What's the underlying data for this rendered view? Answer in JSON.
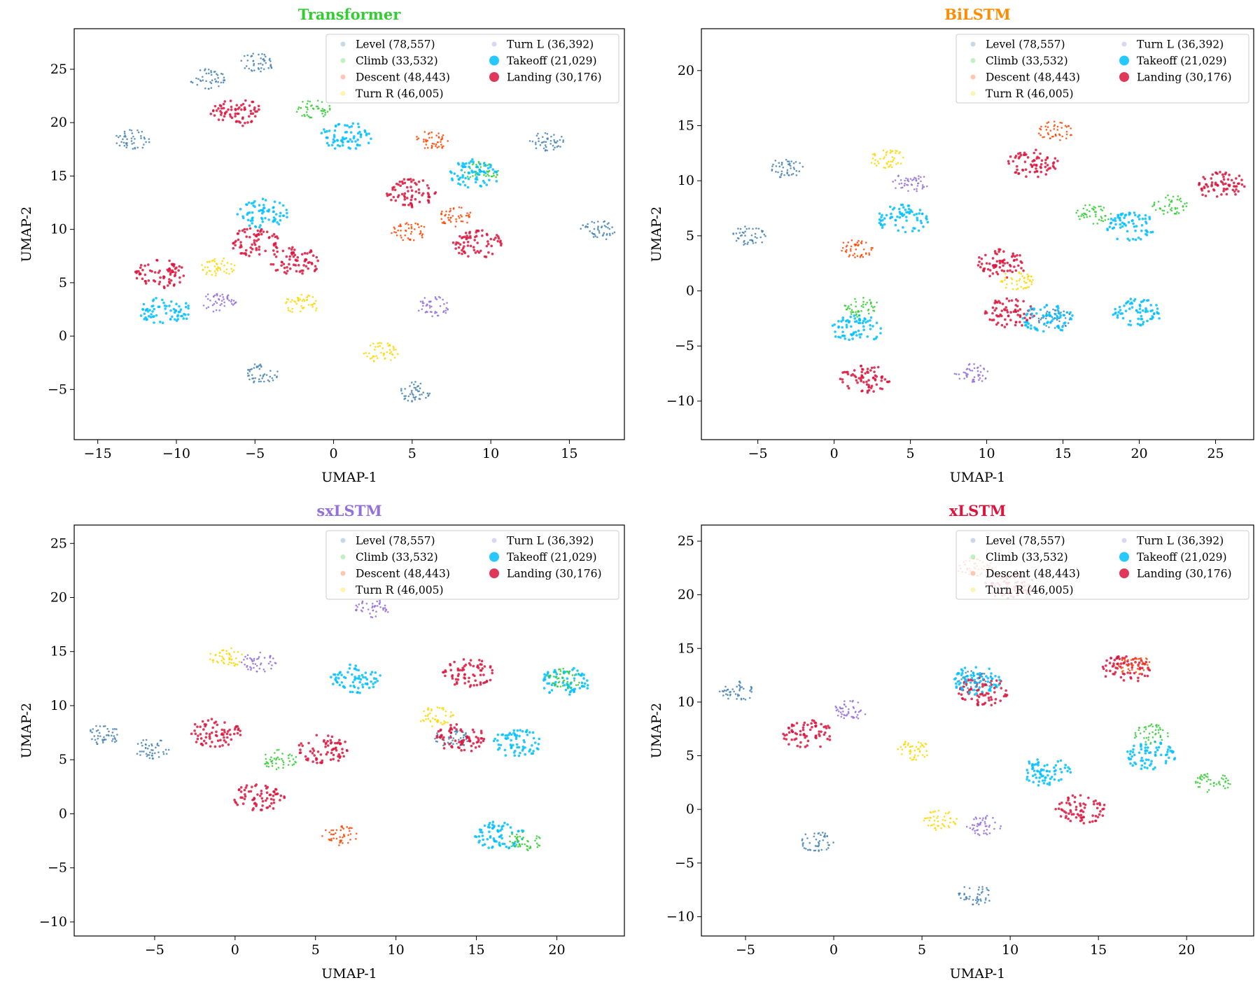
{
  "legend": [
    {
      "label": "Level (78,557)",
      "color": "#4682b4",
      "size": "small"
    },
    {
      "label": "Climb (33,532)",
      "color": "#32cd32",
      "size": "small"
    },
    {
      "label": "Descent (48,443)",
      "color": "#ff4500",
      "size": "small"
    },
    {
      "label": "Turn R (46,005)",
      "color": "#ffd700",
      "size": "small"
    },
    {
      "label": "Turn L (36,392)",
      "color": "#9370db",
      "size": "small"
    },
    {
      "label": "Takeoff (21,029)",
      "color": "#00bfff",
      "size": "large"
    },
    {
      "label": "Landing (30,176)",
      "color": "#dc143c",
      "size": "large"
    }
  ],
  "chart_data": [
    {
      "type": "scatter",
      "title": "Transformer",
      "title_color": "#32cd32",
      "xlabel": "UMAP-1",
      "ylabel": "UMAP-2",
      "xlim": [
        -16.5,
        18.5
      ],
      "ylim": [
        -9.7,
        28.8
      ],
      "xticks": [
        -15,
        -10,
        -5,
        0,
        5,
        10,
        15
      ],
      "yticks": [
        -5,
        0,
        5,
        10,
        15,
        20,
        25
      ],
      "clusters": [
        {
          "class": "Level",
          "x": 5.2,
          "y": -5.2
        },
        {
          "class": "Level",
          "x": -4.6,
          "y": -3.5
        },
        {
          "class": "Level",
          "x": 13.6,
          "y": 18.3
        },
        {
          "class": "Level",
          "x": 16.8,
          "y": 9.9
        },
        {
          "class": "Level",
          "x": -4.9,
          "y": 25.6
        },
        {
          "class": "Level",
          "x": -8.0,
          "y": 24.1
        },
        {
          "class": "Level",
          "x": -12.8,
          "y": 18.4
        },
        {
          "class": "Climb",
          "x": -1.3,
          "y": 21.3
        },
        {
          "class": "Climb",
          "x": 9.4,
          "y": 15.4
        },
        {
          "class": "Takeoff",
          "x": -4.5,
          "y": 11.5
        },
        {
          "class": "Takeoff",
          "x": 0.8,
          "y": 18.7
        },
        {
          "class": "Takeoff",
          "x": -10.7,
          "y": 2.3
        },
        {
          "class": "Takeoff",
          "x": 9.0,
          "y": 15.2
        },
        {
          "class": "Landing",
          "x": -5.0,
          "y": 8.8
        },
        {
          "class": "Landing",
          "x": -2.4,
          "y": 7.0
        },
        {
          "class": "Landing",
          "x": 9.2,
          "y": 8.6
        },
        {
          "class": "Landing",
          "x": 5.0,
          "y": 13.4
        },
        {
          "class": "Landing",
          "x": -6.2,
          "y": 21.0
        },
        {
          "class": "Landing",
          "x": -11.0,
          "y": 5.8
        },
        {
          "class": "Descent",
          "x": 6.2,
          "y": 18.3
        },
        {
          "class": "Descent",
          "x": 4.8,
          "y": 9.8
        },
        {
          "class": "Descent",
          "x": 7.8,
          "y": 11.2
        },
        {
          "class": "Turn L",
          "x": 6.3,
          "y": 2.8
        },
        {
          "class": "Turn L",
          "x": -7.3,
          "y": 3.2
        },
        {
          "class": "Turn R",
          "x": -2.0,
          "y": 3.0
        },
        {
          "class": "Turn R",
          "x": 3.0,
          "y": -1.5
        },
        {
          "class": "Turn R",
          "x": -7.4,
          "y": 6.5
        }
      ]
    },
    {
      "type": "scatter",
      "title": "BiLSTM",
      "title_color": "#ff8c00",
      "xlabel": "UMAP-1",
      "ylabel": "UMAP-2",
      "xlim": [
        -8.7,
        27.5
      ],
      "ylim": [
        -13.5,
        23.8
      ],
      "xticks": [
        -5,
        0,
        5,
        10,
        15,
        20,
        25
      ],
      "yticks": [
        -10,
        -5,
        0,
        5,
        10,
        15,
        20
      ],
      "clusters": [
        {
          "class": "Level",
          "x": -5.5,
          "y": 5.0
        },
        {
          "class": "Level",
          "x": -3.2,
          "y": 11.2
        },
        {
          "class": "Level",
          "x": 14.5,
          "y": -2.5
        },
        {
          "class": "Landing",
          "x": 11.5,
          "y": -2.0
        },
        {
          "class": "Landing",
          "x": 13.0,
          "y": 11.6
        },
        {
          "class": "Landing",
          "x": 11.0,
          "y": 2.5
        },
        {
          "class": "Landing",
          "x": 25.5,
          "y": 9.5
        },
        {
          "class": "Landing",
          "x": 2.0,
          "y": -8.0
        },
        {
          "class": "Takeoff",
          "x": 14.0,
          "y": -2.5
        },
        {
          "class": "Takeoff",
          "x": 19.5,
          "y": 5.8
        },
        {
          "class": "Takeoff",
          "x": 1.5,
          "y": -3.5
        },
        {
          "class": "Takeoff",
          "x": 4.5,
          "y": 6.5
        },
        {
          "class": "Takeoff",
          "x": 19.8,
          "y": -2.0
        },
        {
          "class": "Climb",
          "x": 17.0,
          "y": 7.0
        },
        {
          "class": "Climb",
          "x": 22.0,
          "y": 7.8
        },
        {
          "class": "Climb",
          "x": 1.8,
          "y": -1.5
        },
        {
          "class": "Descent",
          "x": 1.5,
          "y": 3.8
        },
        {
          "class": "Descent",
          "x": 14.5,
          "y": 14.5
        },
        {
          "class": "Turn L",
          "x": 5.0,
          "y": 9.8
        },
        {
          "class": "Turn L",
          "x": 9.0,
          "y": -7.5
        },
        {
          "class": "Turn R",
          "x": 3.5,
          "y": 12.0
        },
        {
          "class": "Turn R",
          "x": 12.0,
          "y": 1.0
        }
      ]
    },
    {
      "type": "scatter",
      "title": "sxLSTM",
      "title_color": "#9370db",
      "xlabel": "UMAP-1",
      "ylabel": "UMAP-2",
      "xlim": [
        -10.0,
        24.2
      ],
      "ylim": [
        -11.3,
        26.7
      ],
      "xticks": [
        -5,
        0,
        5,
        10,
        15,
        20
      ],
      "yticks": [
        -10,
        -5,
        0,
        5,
        10,
        15,
        20,
        25
      ],
      "clusters": [
        {
          "class": "Level",
          "x": -5.2,
          "y": 6.0
        },
        {
          "class": "Level",
          "x": -8.2,
          "y": 7.3
        },
        {
          "class": "Level",
          "x": 13.5,
          "y": 7.0
        },
        {
          "class": "Landing",
          "x": 14.0,
          "y": 7.0
        },
        {
          "class": "Landing",
          "x": -1.2,
          "y": 7.5
        },
        {
          "class": "Landing",
          "x": 1.5,
          "y": 1.5
        },
        {
          "class": "Landing",
          "x": 14.5,
          "y": 13.0
        },
        {
          "class": "Landing",
          "x": 5.5,
          "y": 6.0
        },
        {
          "class": "Takeoff",
          "x": 17.5,
          "y": 6.5
        },
        {
          "class": "Takeoff",
          "x": 16.5,
          "y": -2.0
        },
        {
          "class": "Takeoff",
          "x": 7.5,
          "y": 12.5
        },
        {
          "class": "Takeoff",
          "x": 20.5,
          "y": 12.2
        },
        {
          "class": "Climb",
          "x": 20.5,
          "y": 12.5
        },
        {
          "class": "Climb",
          "x": 18.0,
          "y": -2.5
        },
        {
          "class": "Climb",
          "x": 2.8,
          "y": 5.0
        },
        {
          "class": "Descent",
          "x": 6.5,
          "y": -2.0
        },
        {
          "class": "Turn L",
          "x": 1.5,
          "y": 14.0
        },
        {
          "class": "Turn L",
          "x": 8.5,
          "y": 19.0
        },
        {
          "class": "Turn R",
          "x": 12.5,
          "y": 9.0
        },
        {
          "class": "Turn R",
          "x": -0.5,
          "y": 14.5
        }
      ]
    },
    {
      "type": "scatter",
      "title": "xLSTM",
      "title_color": "#dc143c",
      "xlabel": "UMAP-1",
      "ylabel": "UMAP-2",
      "xlim": [
        -7.5,
        23.8
      ],
      "ylim": [
        -11.8,
        26.5
      ],
      "xticks": [
        -5,
        0,
        5,
        10,
        15,
        20
      ],
      "yticks": [
        -10,
        -5,
        0,
        5,
        10,
        15,
        20,
        25
      ],
      "clusters": [
        {
          "class": "Level",
          "x": -5.5,
          "y": 11.0
        },
        {
          "class": "Level",
          "x": -1.0,
          "y": -3.0
        },
        {
          "class": "Level",
          "x": 8.0,
          "y": -8.0
        },
        {
          "class": "Level",
          "x": 8.0,
          "y": 12.0
        },
        {
          "class": "Landing",
          "x": 8.5,
          "y": 11.0
        },
        {
          "class": "Landing",
          "x": 14.0,
          "y": 0.0
        },
        {
          "class": "Landing",
          "x": 16.5,
          "y": 13.0
        },
        {
          "class": "Landing",
          "x": -1.5,
          "y": 7.0
        },
        {
          "class": "Landing",
          "x": 10.0,
          "y": 21.0
        },
        {
          "class": "Takeoff",
          "x": 8.0,
          "y": 12.0
        },
        {
          "class": "Takeoff",
          "x": 18.0,
          "y": 5.0
        },
        {
          "class": "Takeoff",
          "x": 12.0,
          "y": 3.5
        },
        {
          "class": "Climb",
          "x": 21.5,
          "y": 2.5
        },
        {
          "class": "Climb",
          "x": 18.0,
          "y": 7.0
        },
        {
          "class": "Descent",
          "x": 17.0,
          "y": 13.5
        },
        {
          "class": "Descent",
          "x": 8.0,
          "y": 22.5
        },
        {
          "class": "Turn L",
          "x": 8.5,
          "y": -1.5
        },
        {
          "class": "Turn L",
          "x": 1.0,
          "y": 9.3
        },
        {
          "class": "Turn R",
          "x": 6.0,
          "y": -1.0
        },
        {
          "class": "Turn R",
          "x": 4.5,
          "y": 5.5
        }
      ]
    }
  ]
}
